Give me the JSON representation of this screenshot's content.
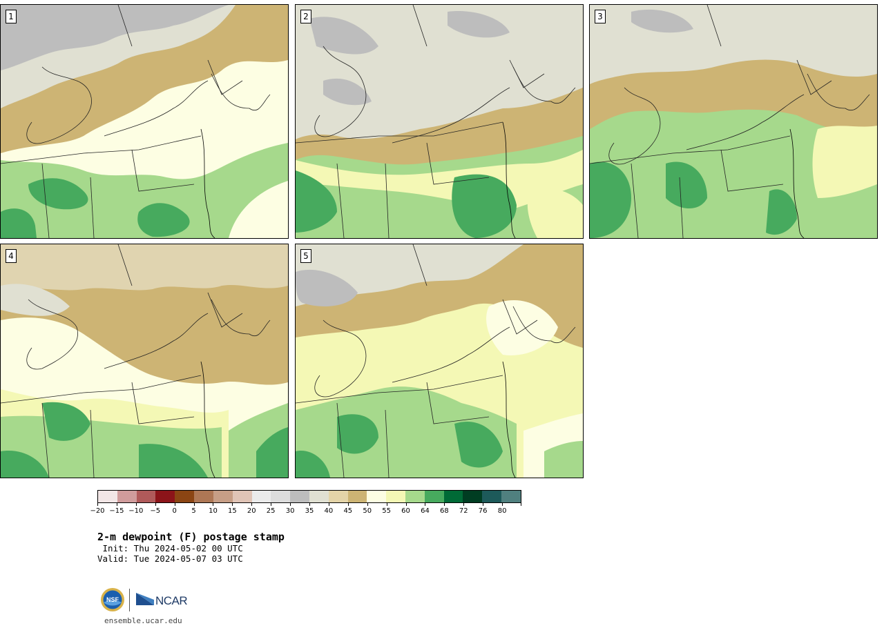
{
  "figure": {
    "title": "2-m dewpoint (F) postage stamp",
    "init": " Init: Thu 2024-05-02 00 UTC",
    "valid": "Valid: Tue 2024-05-07 03 UTC",
    "site": "ensemble.ucar.edu"
  },
  "panels": [
    {
      "label": "1"
    },
    {
      "label": "2"
    },
    {
      "label": "3"
    },
    {
      "label": "4"
    },
    {
      "label": "5"
    }
  ],
  "colorbar": {
    "colors": [
      "#f2e6e6",
      "#d09c9c",
      "#b05a5a",
      "#8c1419",
      "#8b4513",
      "#ae7755",
      "#c79e86",
      "#e0c4b6",
      "#ebebeb",
      "#dcdcdc",
      "#bdbdbd",
      "#e0e0d2",
      "#e4d4a8",
      "#cdb474",
      "#fdfee3",
      "#f4f8b5",
      "#a6d98c",
      "#47aa5e",
      "#006a36",
      "#003d22",
      "#1d5a5a",
      "#50807f"
    ],
    "tick_labels": [
      "−20",
      "−15",
      "−10",
      "−5",
      "0",
      "5",
      "10",
      "15",
      "20",
      "25",
      "30",
      "35",
      "40",
      "45",
      "50",
      "55",
      "60",
      "64",
      "68",
      "72",
      "76",
      "80"
    ]
  },
  "logos": {
    "nsf": "NSF",
    "ncar": "NCAR"
  }
}
